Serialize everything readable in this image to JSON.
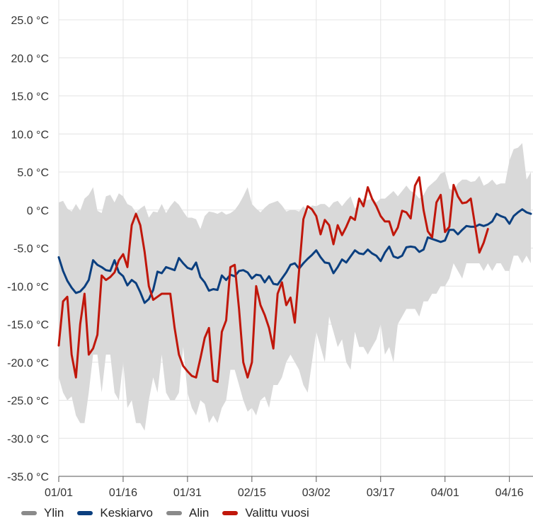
{
  "colors": {
    "band": "#d9d9d9",
    "average": "#0b3f7f",
    "selected": "#c0170b",
    "legend_gray": "#8a8a8a",
    "grid": "#e4e4e4"
  },
  "legend": {
    "items": [
      {
        "label": "Ylin",
        "color": "#8a8a8a"
      },
      {
        "label": "Keskiarvo",
        "color": "#0b3f7f"
      },
      {
        "label": "Alin",
        "color": "#8a8a8a"
      },
      {
        "label": "Valittu vuosi",
        "color": "#c0170b"
      }
    ]
  },
  "chart_data": {
    "type": "line",
    "title": "",
    "xlabel": "",
    "ylabel": "",
    "ylim": [
      -35,
      25
    ],
    "y_ticks": [
      25,
      20,
      15,
      10,
      5,
      0,
      -5,
      -10,
      -15,
      -20,
      -25,
      -30,
      -35
    ],
    "y_tick_labels": [
      "25.0 °C",
      "20.0 °C",
      "15.0 °C",
      "10.0 °C",
      "5.0 °C",
      "0 °C",
      "-5.0 °C",
      "-10.0 °C",
      "-15.0 °C",
      "-20.0 °C",
      "-25.0 °C",
      "-30.0 °C",
      "-35.0 °C"
    ],
    "x_range_days": [
      0,
      110.5
    ],
    "x_ticks": [
      {
        "day": 0,
        "label": "01/01"
      },
      {
        "day": 15,
        "label": "01/16"
      },
      {
        "day": 30,
        "label": "01/31"
      },
      {
        "day": 45,
        "label": "02/15"
      },
      {
        "day": 60,
        "label": "03/02"
      },
      {
        "day": 75,
        "label": "03/17"
      },
      {
        "day": 90,
        "label": "04/01"
      },
      {
        "day": 105,
        "label": "04/16"
      }
    ],
    "series": [
      {
        "name": "Ylin",
        "kind": "band-upper",
        "x": [
          0,
          1,
          2,
          3,
          4,
          5,
          6,
          7,
          8,
          9,
          10,
          11,
          12,
          13,
          14,
          15,
          16,
          17,
          18,
          19,
          20,
          21,
          22,
          23,
          24,
          25,
          26,
          27,
          28,
          29,
          30,
          31,
          32,
          33,
          34,
          35,
          36,
          37,
          38,
          39,
          40,
          41,
          42,
          43,
          44,
          45,
          46,
          47,
          48,
          49,
          50,
          51,
          52,
          53,
          54,
          55,
          56,
          57,
          58,
          59,
          60,
          61,
          62,
          63,
          64,
          65,
          66,
          67,
          68,
          69,
          70,
          71,
          72,
          73,
          74,
          75,
          76,
          77,
          78,
          79,
          80,
          81,
          82,
          83,
          84,
          85,
          86,
          87,
          88,
          89,
          90,
          91,
          92,
          93,
          94,
          95,
          96,
          97,
          98,
          99,
          100,
          101,
          102,
          103,
          104,
          105,
          106,
          107,
          108,
          109,
          110
        ],
        "values": [
          1,
          1.2,
          0.2,
          -0.2,
          0.8,
          -0.1,
          1.5,
          2.0,
          3.0,
          -0.1,
          -0.4,
          1.8,
          2.0,
          1.0,
          2.2,
          1.8,
          0.8,
          0.5,
          -0.3,
          0.2,
          0.6,
          -1.0,
          -0.2,
          -0.3,
          0.8,
          -0.4,
          0.5,
          1.2,
          0.7,
          -0.2,
          -1.0,
          -1.0,
          -1.2,
          -2.5,
          -0.8,
          -0.2,
          -0.3,
          -0.5,
          -0.2,
          -0.6,
          -0.4,
          0.0,
          0.8,
          1.8,
          3.0,
          0.8,
          0.2,
          -0.3,
          0.3,
          0.8,
          1.0,
          1.2,
          0.6,
          -0.2,
          0.0,
          0.0,
          -0.2,
          0.5,
          -0.2,
          0.6,
          0.5,
          0.8,
          0.8,
          0.3,
          1.0,
          1.2,
          0.5,
          1.2,
          1.8,
          0.2,
          0.8,
          1.5,
          1.3,
          1.5,
          1.0,
          1.5,
          1.5,
          2.0,
          2.5,
          1.8,
          2.5,
          3.2,
          2.5,
          2.2,
          1.5,
          2.0,
          3.0,
          3.5,
          4.0,
          4.8,
          5.0,
          2.8,
          2.5,
          3.5,
          4.0,
          4.0,
          3.7,
          3.8,
          4.5,
          3.2,
          3.5,
          4.0,
          3.3,
          3.5,
          3.5,
          6.5,
          8.0,
          8.2,
          8.8,
          4.0,
          5.0
        ]
      },
      {
        "name": "Keskiarvo",
        "kind": "line",
        "x": [
          0,
          1,
          2,
          3,
          4,
          5,
          6,
          7,
          8,
          9,
          10,
          11,
          12,
          13,
          14,
          15,
          16,
          17,
          18,
          19,
          20,
          21,
          22,
          23,
          24,
          25,
          26,
          27,
          28,
          29,
          30,
          31,
          32,
          33,
          34,
          35,
          36,
          37,
          38,
          39,
          40,
          41,
          42,
          43,
          44,
          45,
          46,
          47,
          48,
          49,
          50,
          51,
          52,
          53,
          54,
          55,
          56,
          57,
          58,
          59,
          60,
          61,
          62,
          63,
          64,
          65,
          66,
          67,
          68,
          69,
          70,
          71,
          72,
          73,
          74,
          75,
          76,
          77,
          78,
          79,
          80,
          81,
          82,
          83,
          84,
          85,
          86,
          87,
          88,
          89,
          90,
          91,
          92,
          93,
          94,
          95,
          96,
          97,
          98,
          99,
          100,
          101,
          102,
          103,
          104,
          105,
          106,
          107,
          108,
          109,
          110
        ],
        "values": [
          -6.2,
          -8.0,
          -9.3,
          -10.2,
          -10.9,
          -10.7,
          -10.1,
          -9.2,
          -6.6,
          -7.2,
          -7.5,
          -7.9,
          -8.0,
          -6.6,
          -8.2,
          -8.7,
          -9.9,
          -9.2,
          -9.6,
          -10.8,
          -12.2,
          -11.7,
          -10.5,
          -8.1,
          -8.3,
          -7.5,
          -7.7,
          -7.9,
          -6.3,
          -7.0,
          -7.6,
          -7.8,
          -6.9,
          -8.8,
          -9.5,
          -10.6,
          -10.4,
          -10.5,
          -8.6,
          -9.2,
          -8.5,
          -8.7,
          -8.0,
          -7.9,
          -8.2,
          -9.0,
          -8.5,
          -8.6,
          -9.5,
          -8.7,
          -9.7,
          -9.8,
          -9.0,
          -8.2,
          -7.2,
          -7.0,
          -7.7,
          -7.0,
          -6.4,
          -5.9,
          -5.3,
          -6.2,
          -6.9,
          -7.0,
          -8.3,
          -7.5,
          -6.5,
          -6.9,
          -6.1,
          -5.3,
          -5.7,
          -5.8,
          -5.2,
          -5.7,
          -6.0,
          -6.7,
          -5.6,
          -4.8,
          -6.1,
          -6.3,
          -6.0,
          -4.9,
          -4.8,
          -4.9,
          -5.5,
          -5.2,
          -3.6,
          -3.8,
          -4.0,
          -4.2,
          -4.0,
          -2.6,
          -2.6,
          -3.2,
          -2.6,
          -2.1,
          -2.2,
          -2.2,
          -1.9,
          -2.1,
          -1.9,
          -1.5,
          -0.5,
          -0.8,
          -1.0,
          -1.8,
          -0.8,
          -0.3,
          0.1,
          -0.3,
          -0.5
        ]
      },
      {
        "name": "Alin",
        "kind": "band-lower",
        "x": [
          0,
          1,
          2,
          3,
          4,
          5,
          6,
          7,
          8,
          9,
          10,
          11,
          12,
          13,
          14,
          15,
          16,
          17,
          18,
          19,
          20,
          21,
          22,
          23,
          24,
          25,
          26,
          27,
          28,
          29,
          30,
          31,
          32,
          33,
          34,
          35,
          36,
          37,
          38,
          39,
          40,
          41,
          42,
          43,
          44,
          45,
          46,
          47,
          48,
          49,
          50,
          51,
          52,
          53,
          54,
          55,
          56,
          57,
          58,
          59,
          60,
          61,
          62,
          63,
          64,
          65,
          66,
          67,
          68,
          69,
          70,
          71,
          72,
          73,
          74,
          75,
          76,
          77,
          78,
          79,
          80,
          81,
          82,
          83,
          84,
          85,
          86,
          87,
          88,
          89,
          90,
          91,
          92,
          93,
          94,
          95,
          96,
          97,
          98,
          99,
          100,
          101,
          102,
          103,
          104,
          105,
          106,
          107,
          108,
          109,
          110
        ],
        "values": [
          -22,
          -24,
          -25,
          -24.5,
          -27,
          -28,
          -28,
          -24,
          -19,
          -19,
          -24,
          -19,
          -19,
          -24,
          -25,
          -20,
          -26,
          -25,
          -28,
          -28,
          -29,
          -25,
          -22,
          -24,
          -19,
          -24,
          -25,
          -25,
          -24,
          -18,
          -24,
          -26,
          -27,
          -25,
          -25.5,
          -28,
          -27,
          -28,
          -26,
          -25,
          -21,
          -21,
          -23,
          -25,
          -26.5,
          -26,
          -27,
          -25,
          -24.5,
          -26,
          -23,
          -23,
          -22,
          -20,
          -19,
          -20,
          -21,
          -23,
          -24,
          -20,
          -16,
          -18,
          -20,
          -14,
          -16,
          -18,
          -17,
          -20,
          -21,
          -16,
          -18,
          -18,
          -19,
          -18,
          -17,
          -15,
          -19,
          -18,
          -20,
          -15,
          -14,
          -13,
          -13,
          -13,
          -14,
          -12,
          -12,
          -11,
          -11,
          -10,
          -10,
          -9,
          -7,
          -8,
          -9,
          -7,
          -7,
          -7,
          -7,
          -8,
          -7,
          -8,
          -7,
          -7,
          -8,
          -8,
          -6,
          -6,
          -7,
          -6,
          -7
        ]
      },
      {
        "name": "Valittu vuosi",
        "kind": "line",
        "x": [
          0,
          1,
          2,
          3,
          4,
          5,
          6,
          7,
          8,
          9,
          10,
          11,
          12,
          13,
          14,
          15,
          16,
          17,
          18,
          19,
          20,
          21,
          22,
          23,
          24,
          25,
          26,
          27,
          28,
          29,
          30,
          31,
          32,
          33,
          34,
          35,
          36,
          37,
          38,
          39,
          40,
          41,
          42,
          43,
          44,
          45,
          46,
          47,
          48,
          49,
          50,
          51,
          52,
          53,
          54,
          55,
          56,
          57,
          58,
          59,
          60,
          61,
          62,
          63,
          64,
          65,
          66,
          67,
          68,
          69,
          70,
          71,
          72,
          73,
          74,
          75,
          76,
          77,
          78,
          79,
          80,
          81,
          82,
          83,
          84,
          85,
          86,
          87,
          88,
          89,
          90,
          91,
          92,
          93,
          94,
          95,
          96,
          97,
          98,
          99,
          100
        ],
        "values": [
          -17.8,
          -12,
          -11.4,
          -19,
          -22,
          -15,
          -11,
          -19,
          -18.2,
          -16.4,
          -8.6,
          -9.2,
          -8.8,
          -8.2,
          -6.6,
          -5.8,
          -7.5,
          -2,
          -0.5,
          -2,
          -5.5,
          -10,
          -11.8,
          -11.4,
          -11,
          -11,
          -11,
          -15.5,
          -19,
          -20.5,
          -21.2,
          -21.8,
          -22,
          -19.5,
          -16.8,
          -15.5,
          -22.4,
          -22.6,
          -16,
          -14.5,
          -7.5,
          -7.2,
          -13,
          -20,
          -22,
          -20,
          -10,
          -12.5,
          -13.8,
          -15.5,
          -18.2,
          -11,
          -9.5,
          -12.5,
          -11.5,
          -14.8,
          -8,
          -1.2,
          0.5,
          0.1,
          -0.8,
          -3.2,
          -1.3,
          -2,
          -4.5,
          -2,
          -3.3,
          -2.2,
          -0.9,
          -1.3,
          1.5,
          0.5,
          3.0,
          1.5,
          0.5,
          -0.8,
          -1.5,
          -1.5,
          -3.3,
          -2.3,
          -0.1,
          -0.3,
          -1.1,
          3.2,
          4.3,
          0,
          -2.8,
          -3.6,
          1,
          2.0,
          -2.9,
          -2.2,
          3.3,
          1.8,
          0.9,
          1.0,
          1.5,
          -2,
          -5.6,
          -4.3,
          -2.5
        ]
      }
    ]
  }
}
